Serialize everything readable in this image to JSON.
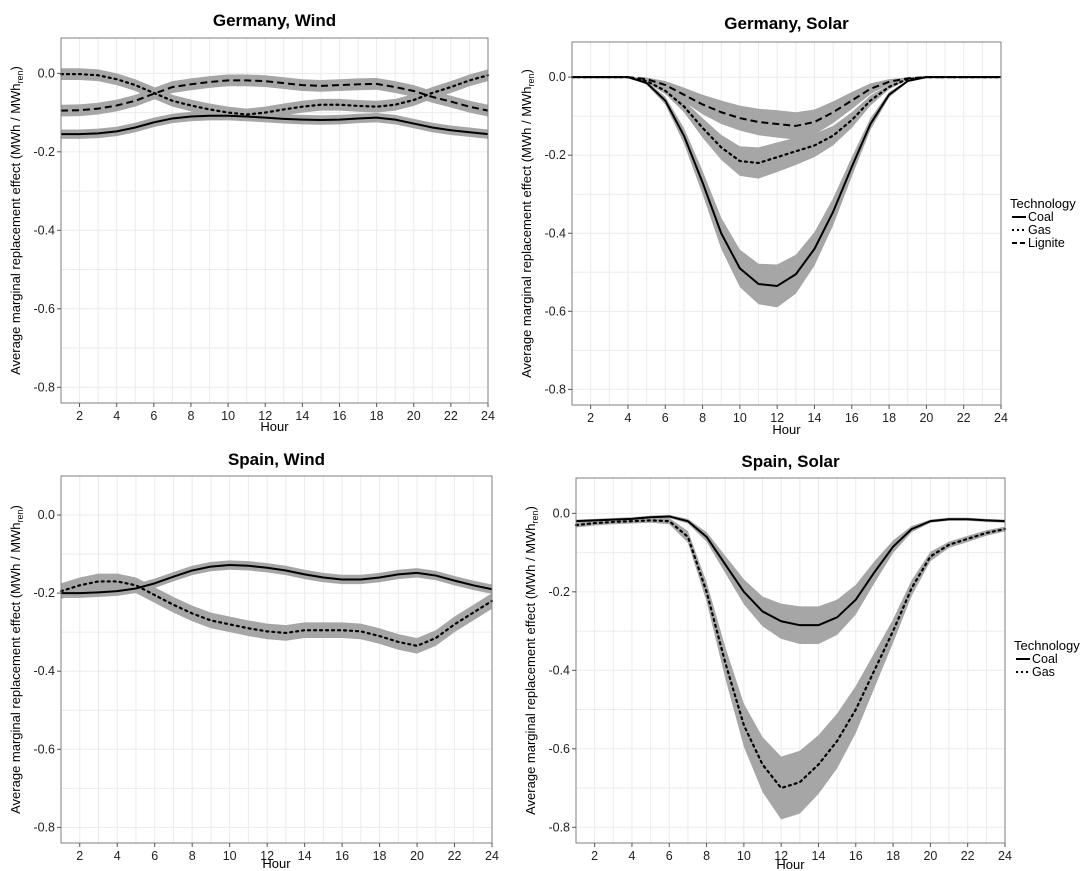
{
  "chart_data": [
    {
      "type": "line",
      "title": "Germany, Wind",
      "xlabel": "Hour",
      "ylabel": "Average marginal replacement effect (MWh / MWh",
      "ylabel_sub": "ren",
      "ylabel_close": ")",
      "x": [
        1,
        2,
        3,
        4,
        5,
        6,
        7,
        8,
        9,
        10,
        11,
        12,
        13,
        14,
        15,
        16,
        17,
        18,
        19,
        20,
        21,
        22,
        23,
        24
      ],
      "xlim": [
        1,
        24
      ],
      "ylim": [
        -0.84,
        0.09
      ],
      "xticks": [
        2,
        4,
        6,
        8,
        10,
        12,
        14,
        16,
        18,
        20,
        22,
        24
      ],
      "yticks": [
        0.0,
        -0.2,
        -0.4,
        -0.6,
        -0.8
      ],
      "ytick_labels": [
        "0.0",
        "-0.2",
        "-0.4",
        "-0.6",
        "-0.8"
      ],
      "grid": true,
      "legend": null,
      "series": [
        {
          "dash": "solid",
          "band": 0.012,
          "values": [
            -0.155,
            -0.155,
            -0.153,
            -0.148,
            -0.138,
            -0.125,
            -0.115,
            -0.11,
            -0.108,
            -0.108,
            -0.11,
            -0.113,
            -0.116,
            -0.118,
            -0.119,
            -0.118,
            -0.115,
            -0.113,
            -0.118,
            -0.128,
            -0.138,
            -0.145,
            -0.15,
            -0.155
          ]
        },
        {
          "dash": "dot",
          "band": 0.015,
          "values": [
            -0.002,
            -0.002,
            -0.005,
            -0.015,
            -0.03,
            -0.05,
            -0.07,
            -0.082,
            -0.092,
            -0.1,
            -0.105,
            -0.1,
            -0.092,
            -0.085,
            -0.08,
            -0.08,
            -0.083,
            -0.085,
            -0.08,
            -0.068,
            -0.05,
            -0.035,
            -0.018,
            -0.005
          ]
        },
        {
          "dash": "dash",
          "band": 0.015,
          "values": [
            -0.095,
            -0.094,
            -0.09,
            -0.082,
            -0.07,
            -0.052,
            -0.035,
            -0.028,
            -0.022,
            -0.018,
            -0.018,
            -0.02,
            -0.025,
            -0.03,
            -0.032,
            -0.03,
            -0.028,
            -0.027,
            -0.035,
            -0.045,
            -0.06,
            -0.072,
            -0.085,
            -0.095
          ]
        }
      ]
    },
    {
      "type": "line",
      "title": "Germany, Solar",
      "xlabel": "Hour",
      "ylabel": "Average marginal replacement effect (MWh / MWh",
      "ylabel_sub": "ren",
      "ylabel_close": ")",
      "x": [
        1,
        2,
        3,
        4,
        5,
        6,
        7,
        8,
        9,
        10,
        11,
        12,
        13,
        14,
        15,
        16,
        17,
        18,
        19,
        20,
        21,
        22,
        23,
        24
      ],
      "xlim": [
        1,
        24
      ],
      "ylim": [
        -0.84,
        0.09
      ],
      "xticks": [
        2,
        4,
        6,
        8,
        10,
        12,
        14,
        16,
        18,
        20,
        22,
        24
      ],
      "yticks": [
        0.0,
        -0.2,
        -0.4,
        -0.6,
        -0.8
      ],
      "ytick_labels": [
        "0.0",
        "-0.2",
        "-0.4",
        "-0.6",
        "-0.8"
      ],
      "grid": true,
      "legend": {
        "title": "Technology",
        "placement": "right",
        "entries": [
          {
            "label": "Coal",
            "dash": "solid"
          },
          {
            "label": "Gas",
            "dash": "dot"
          },
          {
            "label": "Lignite",
            "dash": "dash"
          }
        ]
      },
      "series": [
        {
          "name": "Coal",
          "dash": "solid",
          "values": [
            0,
            0,
            0,
            0,
            -0.015,
            -0.06,
            -0.15,
            -0.27,
            -0.4,
            -0.49,
            -0.53,
            -0.535,
            -0.505,
            -0.44,
            -0.345,
            -0.23,
            -0.12,
            -0.045,
            -0.01,
            0,
            0,
            0,
            0,
            0
          ],
          "band": [
            0,
            0,
            0,
            0,
            0.004,
            0.01,
            0.02,
            0.03,
            0.04,
            0.048,
            0.052,
            0.055,
            0.05,
            0.043,
            0.035,
            0.025,
            0.015,
            0.007,
            0.002,
            0,
            0,
            0,
            0,
            0
          ]
        },
        {
          "name": "Gas",
          "dash": "dot",
          "values": [
            0,
            0,
            0,
            0,
            -0.01,
            -0.035,
            -0.075,
            -0.13,
            -0.18,
            -0.215,
            -0.22,
            -0.205,
            -0.19,
            -0.175,
            -0.15,
            -0.11,
            -0.06,
            -0.025,
            -0.005,
            0,
            0,
            0,
            0,
            0
          ],
          "band": [
            0,
            0,
            0,
            0,
            0.004,
            0.008,
            0.015,
            0.025,
            0.032,
            0.038,
            0.04,
            0.038,
            0.035,
            0.03,
            0.025,
            0.02,
            0.013,
            0.006,
            0.002,
            0,
            0,
            0,
            0,
            0
          ]
        },
        {
          "name": "Lignite",
          "dash": "dash",
          "values": [
            0,
            0,
            0,
            0,
            -0.005,
            -0.02,
            -0.045,
            -0.07,
            -0.09,
            -0.105,
            -0.115,
            -0.12,
            -0.125,
            -0.115,
            -0.09,
            -0.06,
            -0.03,
            -0.012,
            -0.003,
            0,
            0,
            0,
            0,
            0
          ],
          "band": [
            0,
            0,
            0,
            0,
            0.004,
            0.01,
            0.018,
            0.025,
            0.03,
            0.032,
            0.034,
            0.035,
            0.035,
            0.032,
            0.028,
            0.022,
            0.014,
            0.007,
            0.002,
            0,
            0,
            0,
            0,
            0
          ]
        }
      ]
    },
    {
      "type": "line",
      "title": "Spain, Wind",
      "xlabel": "Hour",
      "ylabel": "Average marginal replacement effect (MWh / MWh",
      "ylabel_sub": "ren",
      "ylabel_close": ")",
      "x": [
        1,
        2,
        3,
        4,
        5,
        6,
        7,
        8,
        9,
        10,
        11,
        12,
        13,
        14,
        15,
        16,
        17,
        18,
        19,
        20,
        21,
        22,
        23,
        24
      ],
      "xlim": [
        1,
        24
      ],
      "ylim": [
        -0.84,
        0.1
      ],
      "xticks": [
        2,
        4,
        6,
        8,
        10,
        12,
        14,
        16,
        18,
        20,
        22,
        24
      ],
      "yticks": [
        0.0,
        -0.2,
        -0.4,
        -0.6,
        -0.8
      ],
      "ytick_labels": [
        "0.0",
        "-0.2",
        "-0.4",
        "-0.6",
        "-0.8"
      ],
      "grid": true,
      "legend": null,
      "series": [
        {
          "dash": "solid",
          "band": 0.012,
          "values": [
            -0.2,
            -0.2,
            -0.198,
            -0.195,
            -0.188,
            -0.175,
            -0.158,
            -0.142,
            -0.132,
            -0.128,
            -0.13,
            -0.135,
            -0.142,
            -0.152,
            -0.16,
            -0.165,
            -0.165,
            -0.16,
            -0.152,
            -0.148,
            -0.155,
            -0.168,
            -0.18,
            -0.19
          ]
        },
        {
          "dash": "dot",
          "band": 0.02,
          "values": [
            -0.195,
            -0.18,
            -0.17,
            -0.17,
            -0.18,
            -0.205,
            -0.23,
            -0.252,
            -0.27,
            -0.28,
            -0.29,
            -0.298,
            -0.302,
            -0.295,
            -0.295,
            -0.295,
            -0.298,
            -0.31,
            -0.325,
            -0.335,
            -0.315,
            -0.28,
            -0.25,
            -0.22
          ]
        }
      ]
    },
    {
      "type": "line",
      "title": "Spain, Solar",
      "xlabel": "Hour",
      "ylabel": "Average marginal replacement effect (MWh / MWh",
      "ylabel_sub": "ren",
      "ylabel_close": ")",
      "x": [
        1,
        2,
        3,
        4,
        5,
        6,
        7,
        8,
        9,
        10,
        11,
        12,
        13,
        14,
        15,
        16,
        17,
        18,
        19,
        20,
        21,
        22,
        23,
        24
      ],
      "xlim": [
        1,
        24
      ],
      "ylim": [
        -0.84,
        0.09
      ],
      "xticks": [
        2,
        4,
        6,
        8,
        10,
        12,
        14,
        16,
        18,
        20,
        22,
        24
      ],
      "yticks": [
        0.0,
        -0.2,
        -0.4,
        -0.6,
        -0.8
      ],
      "ytick_labels": [
        "0.0",
        "-0.2",
        "-0.4",
        "-0.6",
        "-0.8"
      ],
      "grid": true,
      "legend": {
        "title": "Technology",
        "placement": "right",
        "entries": [
          {
            "label": "Coal",
            "dash": "solid"
          },
          {
            "label": "Gas",
            "dash": "dot"
          }
        ]
      },
      "series": [
        {
          "name": "Coal",
          "dash": "solid",
          "values": [
            -0.02,
            -0.018,
            -0.016,
            -0.014,
            -0.01,
            -0.008,
            -0.02,
            -0.06,
            -0.13,
            -0.2,
            -0.25,
            -0.275,
            -0.285,
            -0.285,
            -0.265,
            -0.22,
            -0.15,
            -0.085,
            -0.04,
            -0.02,
            -0.015,
            -0.015,
            -0.018,
            -0.02
          ],
          "band": [
            0.004,
            0.004,
            0.004,
            0.004,
            0.004,
            0.004,
            0.006,
            0.012,
            0.022,
            0.032,
            0.038,
            0.045,
            0.048,
            0.048,
            0.045,
            0.038,
            0.028,
            0.016,
            0.008,
            0.004,
            0.004,
            0.004,
            0.004,
            0.004
          ]
        },
        {
          "name": "Gas",
          "dash": "dot",
          "values": [
            -0.03,
            -0.025,
            -0.022,
            -0.02,
            -0.018,
            -0.02,
            -0.06,
            -0.2,
            -0.38,
            -0.54,
            -0.64,
            -0.7,
            -0.685,
            -0.64,
            -0.58,
            -0.5,
            -0.4,
            -0.3,
            -0.19,
            -0.11,
            -0.08,
            -0.065,
            -0.05,
            -0.04
          ],
          "band": [
            0.006,
            0.006,
            0.006,
            0.006,
            0.006,
            0.008,
            0.015,
            0.025,
            0.04,
            0.055,
            0.07,
            0.08,
            0.08,
            0.075,
            0.07,
            0.06,
            0.045,
            0.03,
            0.02,
            0.012,
            0.008,
            0.008,
            0.007,
            0.006
          ]
        }
      ]
    }
  ]
}
